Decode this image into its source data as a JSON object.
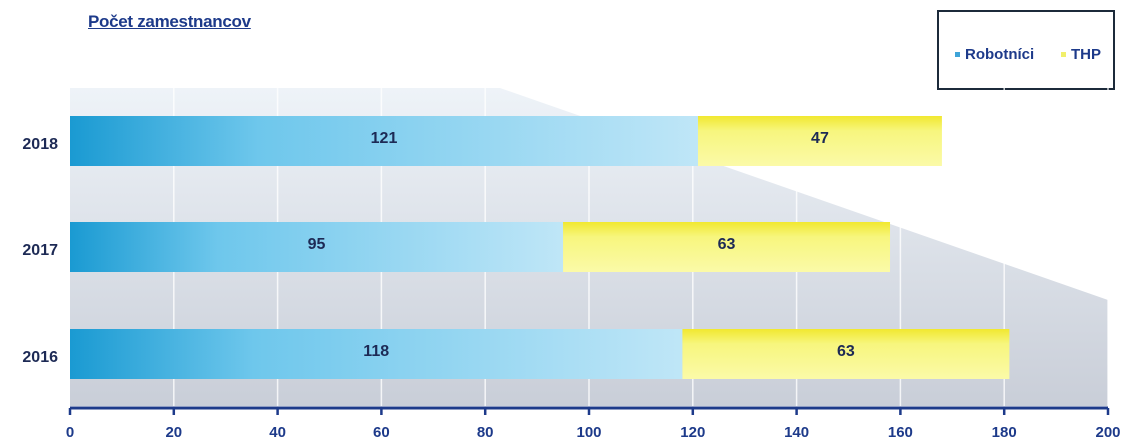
{
  "chart_data": {
    "type": "bar",
    "orientation": "horizontal",
    "stacked": true,
    "title": "Počet zamestnancov",
    "categories": [
      "2018",
      "2017",
      "2016"
    ],
    "series": [
      {
        "name": "Robotníci",
        "values": [
          121,
          95,
          118
        ],
        "color": "#6cc6ec"
      },
      {
        "name": "THP",
        "values": [
          47,
          63,
          63
        ],
        "color": "#f6f57a"
      }
    ],
    "xlim": [
      0,
      200
    ],
    "x_ticks": [
      "0",
      "20",
      "40",
      "60",
      "80",
      "100",
      "120",
      "140",
      "160",
      "180",
      "200"
    ],
    "grid": true,
    "legend_position": "top-right"
  }
}
